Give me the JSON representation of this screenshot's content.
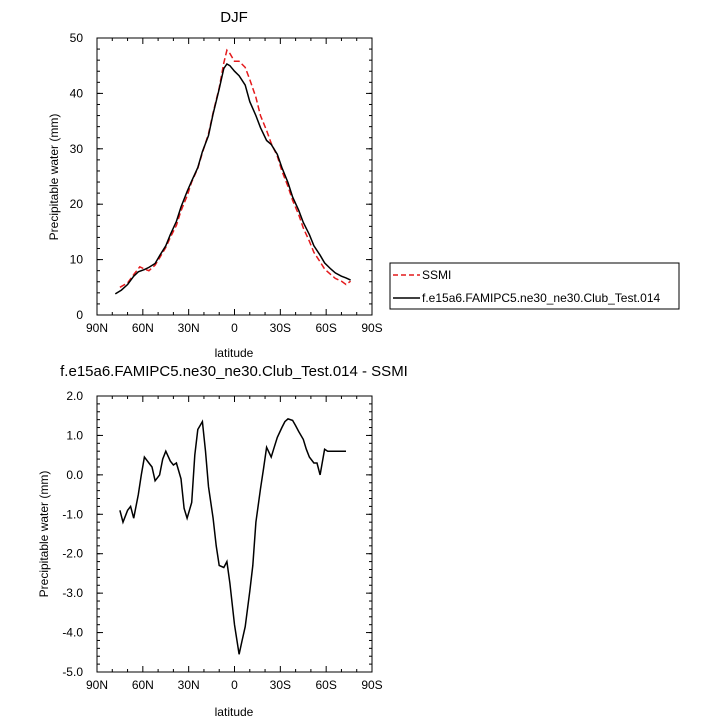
{
  "chart_data": [
    {
      "type": "line",
      "title": "DJF",
      "xlabel": "latitude",
      "ylabel": "Precipitable water (mm)",
      "xlim": [
        -90,
        90
      ],
      "ylim": [
        0,
        50
      ],
      "x_ticks": [
        -90,
        -60,
        -30,
        0,
        30,
        60,
        90
      ],
      "x_tick_labels": [
        "90N",
        "60N",
        "30N",
        "0",
        "30S",
        "60S",
        "90S"
      ],
      "y_ticks": [
        0,
        10,
        20,
        30,
        40,
        50
      ],
      "y_tick_labels": [
        "0",
        "10",
        "20",
        "30",
        "40",
        "50"
      ],
      "legend": "outside right, below plot",
      "series": [
        {
          "name": "SSMI",
          "color": "#e41a1c",
          "dash": "dashed",
          "x": [
            -75,
            -70,
            -66,
            -62,
            -59,
            -56,
            -52,
            -49,
            -45,
            -42,
            -38,
            -35,
            -31,
            -28,
            -24,
            -21,
            -17,
            -14,
            -10,
            -7,
            -5,
            -3,
            0,
            3,
            7,
            10,
            14,
            17,
            21,
            24,
            28,
            31,
            35,
            38,
            42,
            45,
            49,
            52,
            56,
            59,
            63,
            66,
            70,
            73,
            76
          ],
          "y": [
            5.0,
            5.8,
            7.3,
            8.7,
            8.3,
            8.0,
            9.0,
            10.3,
            12.2,
            14.0,
            16.2,
            18.8,
            21.5,
            24.0,
            26.5,
            29.3,
            32.7,
            36.5,
            41.0,
            45.5,
            47.8,
            47.2,
            45.8,
            45.8,
            44.7,
            42.5,
            39.3,
            36.0,
            33.3,
            31.0,
            28.7,
            26.0,
            23.2,
            20.7,
            18.1,
            15.7,
            13.3,
            11.3,
            9.6,
            8.3,
            7.3,
            6.6,
            6.1,
            5.5,
            6.1
          ]
        },
        {
          "name": "f.e15a6.FAMIPC5.ne30_ne30.Club_Test.014",
          "color": "#000000",
          "dash": "solid",
          "x": [
            -78,
            -74,
            -70,
            -66,
            -63,
            -59,
            -56,
            -52,
            -49,
            -45,
            -42,
            -38,
            -35,
            -31,
            -28,
            -24,
            -21,
            -17,
            -14,
            -10,
            -7,
            -5,
            -3,
            0,
            3,
            7,
            10,
            14,
            17,
            21,
            24,
            28,
            31,
            35,
            38,
            42,
            45,
            49,
            52,
            56,
            59,
            63,
            66,
            70,
            73,
            76
          ],
          "y": [
            3.8,
            4.5,
            5.5,
            7.0,
            7.8,
            8.2,
            8.6,
            9.3,
            10.7,
            12.5,
            14.5,
            16.9,
            19.5,
            22.3,
            24.2,
            26.6,
            29.5,
            32.4,
            36.3,
            40.8,
            44.5,
            45.3,
            45.0,
            44.0,
            43.2,
            41.5,
            38.5,
            36.0,
            33.8,
            31.5,
            30.8,
            29.0,
            26.6,
            23.9,
            21.3,
            18.9,
            16.7,
            14.5,
            12.5,
            10.8,
            9.4,
            8.3,
            7.6,
            7.0,
            6.7,
            6.3
          ]
        }
      ]
    },
    {
      "type": "line",
      "title": "f.e15a6.FAMIPC5.ne30_ne30.Club_Test.014 - SSMI",
      "xlabel": "latitude",
      "ylabel": "Precipitable water (mm)",
      "xlim": [
        -90,
        90
      ],
      "ylim": [
        -5.0,
        2.0
      ],
      "x_ticks": [
        -90,
        -60,
        -30,
        0,
        30,
        60,
        90
      ],
      "x_tick_labels": [
        "90N",
        "60N",
        "30N",
        "0",
        "30S",
        "60S",
        "90S"
      ],
      "y_ticks": [
        -5,
        -4,
        -3,
        -2,
        -1,
        0,
        1,
        2
      ],
      "y_tick_labels": [
        "-5.0",
        "-4.0",
        "-3.0",
        "-2.0",
        "-1.0",
        "0.0",
        "1.0",
        "2.0"
      ],
      "series": [
        {
          "color": "#000000",
          "dash": "solid",
          "x": [
            -75,
            -73,
            -70,
            -68,
            -66,
            -63,
            -61,
            -59,
            -56,
            -54,
            -52,
            -49,
            -47,
            -45,
            -42,
            -40,
            -38,
            -35,
            -33,
            -31,
            -28,
            -26,
            -24,
            -21,
            -19,
            -17,
            -14,
            -12,
            -10,
            -7,
            -5,
            -3,
            0,
            3,
            5,
            7,
            10,
            12,
            14,
            17,
            19,
            21,
            24,
            26,
            28,
            31,
            33,
            35,
            38,
            40,
            42,
            45,
            47,
            49,
            52,
            54,
            56,
            59,
            61,
            63,
            66,
            68,
            70,
            73
          ],
          "y": [
            -0.9,
            -1.2,
            -0.9,
            -0.8,
            -1.1,
            -0.5,
            0.0,
            0.45,
            0.3,
            0.2,
            -0.15,
            0.0,
            0.4,
            0.6,
            0.35,
            0.25,
            0.3,
            -0.1,
            -0.85,
            -1.1,
            -0.7,
            0.5,
            1.15,
            1.35,
            0.6,
            -0.3,
            -1.1,
            -1.8,
            -2.3,
            -2.35,
            -2.2,
            -2.75,
            -3.8,
            -4.55,
            -4.2,
            -3.85,
            -2.95,
            -2.3,
            -1.2,
            -0.35,
            0.15,
            0.7,
            0.45,
            0.7,
            0.95,
            1.2,
            1.35,
            1.42,
            1.38,
            1.25,
            1.1,
            0.9,
            0.65,
            0.45,
            0.3,
            0.3,
            0.0,
            0.65,
            0.6,
            0.6,
            0.6,
            0.6,
            0.6,
            0.6
          ]
        }
      ]
    }
  ]
}
